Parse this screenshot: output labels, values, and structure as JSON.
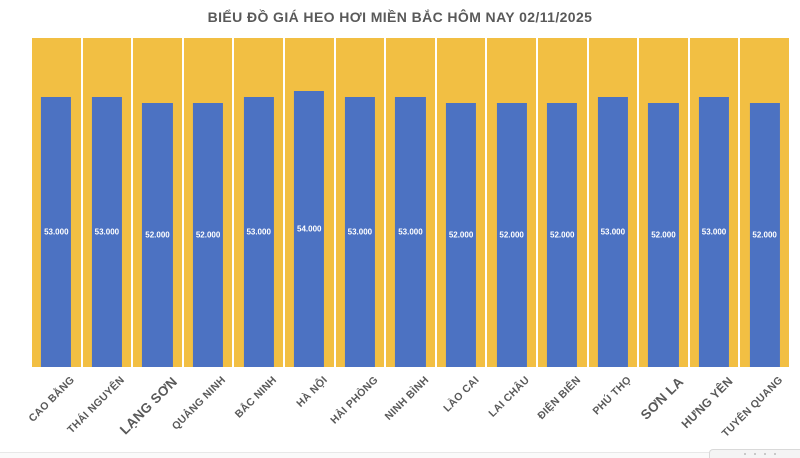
{
  "chart_data": {
    "type": "bar",
    "title": "BIỂU ĐỒ GIÁ HEO HƠI MIỀN BẮC HÔM NAY 02/11/2025",
    "xlabel": "",
    "ylabel": "",
    "grid": false,
    "legend": false,
    "x_label_rotation_deg": 45,
    "categories": [
      "CAO BẰNG",
      "THÁI NGUYÊN",
      "LẠNG SƠN",
      "QUẢNG NINH",
      "BẮC NINH",
      "HÀ NỘI",
      "HẢI PHÒNG",
      "NINH BÌNH",
      "LÀO CAI",
      "LAI CHÂU",
      "ĐIỆN BIÊN",
      "PHÚ THỌ",
      "SƠN LA",
      "HƯNG YÊN",
      "TUYÊN QUANG"
    ],
    "values": [
      53000,
      53000,
      52000,
      52000,
      53000,
      54000,
      53000,
      53000,
      52000,
      52000,
      52000,
      53000,
      52000,
      53000,
      52000
    ],
    "value_labels": [
      "53.000",
      "53.000",
      "52.000",
      "52.000",
      "53.000",
      "54.000",
      "53.000",
      "53.000",
      "52.000",
      "52.000",
      "52.000",
      "53.000",
      "52.000",
      "53.000",
      "52.000"
    ],
    "label_sizes": [
      "normal",
      "normal",
      "large",
      "normal",
      "normal",
      "normal",
      "normal",
      "normal",
      "normal",
      "normal",
      "normal",
      "normal",
      "large",
      "medium",
      "normal"
    ],
    "colors": {
      "bar": "#4C72C2",
      "column_background": "#F2BF43",
      "value_text": "#FFFFFF",
      "title_text": "#595959",
      "axis_label_text": "#595959",
      "separator": "#FFFFFF"
    },
    "style_note": "full-height gold background column behind each blue bar; value label centered inside bar"
  }
}
